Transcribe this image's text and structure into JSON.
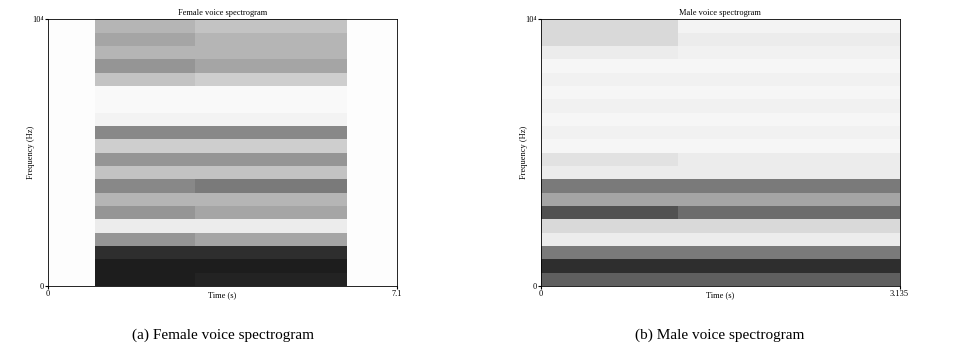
{
  "chart_data": [
    {
      "type": "heatmap",
      "title": "Female voice spectrogram",
      "caption": "(a) Female voice spectrogram",
      "xlabel": "Time (s)",
      "ylabel": "Frequency (Hz)",
      "xlim": [
        0,
        7.1
      ],
      "ylim": [
        0,
        10000
      ],
      "xticks": [
        0,
        7.1
      ],
      "yticks": [
        0,
        {
          "value": 10000,
          "label": "10⁴"
        }
      ],
      "color": "Greys",
      "zlim": [
        0,
        1
      ],
      "x_edges": [
        0,
        0.95,
        3.0,
        6.08,
        7.1
      ],
      "y_edges": [
        0,
        500,
        1000,
        1500,
        2000,
        2500,
        3000,
        3500,
        4000,
        4500,
        5000,
        5500,
        6000,
        6500,
        7000,
        7500,
        8000,
        8500,
        9000,
        9500,
        10000
      ],
      "cells": [
        [
          0.02,
          0.9,
          0.88,
          0.02
        ],
        [
          0.02,
          0.9,
          0.9,
          0.02
        ],
        [
          0.02,
          0.85,
          0.85,
          0.02
        ],
        [
          0.02,
          0.5,
          0.45,
          0.02
        ],
        [
          0.02,
          0.15,
          0.15,
          0.02
        ],
        [
          0.02,
          0.5,
          0.45,
          0.02
        ],
        [
          0.02,
          0.4,
          0.4,
          0.02
        ],
        [
          0.02,
          0.55,
          0.6,
          0.02
        ],
        [
          0.02,
          0.35,
          0.35,
          0.02
        ],
        [
          0.02,
          0.5,
          0.5,
          0.02
        ],
        [
          0.02,
          0.3,
          0.3,
          0.02
        ],
        [
          0.02,
          0.55,
          0.55,
          0.02
        ],
        [
          0.02,
          0.1,
          0.1,
          0.02
        ],
        [
          0.02,
          0.05,
          0.05,
          0.02
        ],
        [
          0.02,
          0.05,
          0.05,
          0.02
        ],
        [
          0.02,
          0.35,
          0.3,
          0.02
        ],
        [
          0.02,
          0.5,
          0.45,
          0.02
        ],
        [
          0.02,
          0.4,
          0.4,
          0.02
        ],
        [
          0.02,
          0.45,
          0.4,
          0.02
        ],
        [
          0.02,
          0.4,
          0.35,
          0.02
        ]
      ]
    },
    {
      "type": "heatmap",
      "title": "Male voice spectrogram",
      "caption": "(b) Male voice spectrogram",
      "xlabel": "Time (s)",
      "ylabel": "Frequency (Hz)",
      "xlim": [
        0,
        3.135
      ],
      "ylim": [
        0,
        10000
      ],
      "xticks": [
        0,
        3.135
      ],
      "yticks": [
        0,
        {
          "value": 10000,
          "label": "10⁴"
        }
      ],
      "color": "Greys",
      "zlim": [
        0,
        1
      ],
      "x_edges": [
        0,
        1.2,
        3.135
      ],
      "y_edges": [
        0,
        500,
        1000,
        1500,
        2000,
        2500,
        3000,
        3500,
        4000,
        4500,
        5000,
        5500,
        6000,
        6500,
        7000,
        7500,
        8000,
        8500,
        9000,
        9500,
        10000
      ],
      "cells": [
        [
          0.7,
          0.7
        ],
        [
          0.85,
          0.85
        ],
        [
          0.6,
          0.6
        ],
        [
          0.15,
          0.15
        ],
        [
          0.25,
          0.25
        ],
        [
          0.75,
          0.65
        ],
        [
          0.45,
          0.45
        ],
        [
          0.6,
          0.6
        ],
        [
          0.15,
          0.15
        ],
        [
          0.2,
          0.15
        ],
        [
          0.08,
          0.08
        ],
        [
          0.12,
          0.12
        ],
        [
          0.08,
          0.08
        ],
        [
          0.12,
          0.12
        ],
        [
          0.08,
          0.08
        ],
        [
          0.12,
          0.12
        ],
        [
          0.08,
          0.08
        ],
        [
          0.15,
          0.12
        ],
        [
          0.25,
          0.15
        ],
        [
          0.25,
          0.1
        ]
      ]
    }
  ]
}
